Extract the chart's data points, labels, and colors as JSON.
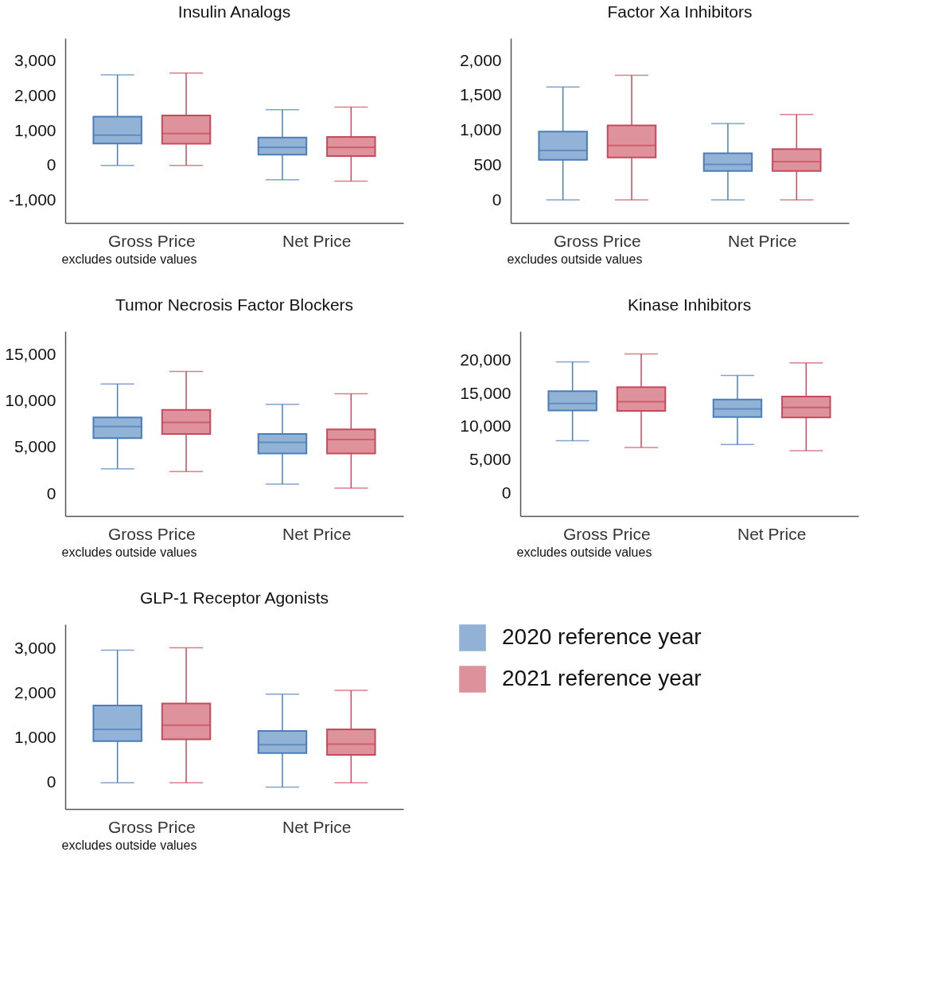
{
  "chart_data": [
    {
      "type": "box",
      "title": "Insulin Analogs",
      "categories": [
        "Gross Price",
        "Net Price"
      ],
      "ylim": [
        -1650,
        3650
      ],
      "yticks": [
        {
          "value": -1000,
          "label": "-1,000"
        },
        {
          "value": 0,
          "label": "0"
        },
        {
          "value": 1000,
          "label": "1,000"
        },
        {
          "value": 2000,
          "label": "2,000"
        },
        {
          "value": 3000,
          "label": "3,000"
        }
      ],
      "annotations": [
        "excludes outside values"
      ],
      "series": [
        {
          "color": "#4a7ebb",
          "boxes": [
            {
              "low": 0,
              "q1": 630,
              "median": 870,
              "q3": 1400,
              "high": 2600
            },
            {
              "low": -410,
              "q1": 310,
              "median": 520,
              "q3": 800,
              "high": 1600
            }
          ]
        },
        {
          "color": "#c84a5a",
          "boxes": [
            {
              "low": 0,
              "q1": 625,
              "median": 915,
              "q3": 1435,
              "high": 2650
            },
            {
              "low": -450,
              "q1": 270,
              "median": 520,
              "q3": 820,
              "high": 1675
            }
          ]
        }
      ]
    },
    {
      "type": "box",
      "title": "Factor Xa Inhibitors",
      "categories": [
        "Gross Price",
        "Net Price"
      ],
      "ylim": [
        -330,
        2320
      ],
      "yticks": [
        {
          "value": 0,
          "label": "0"
        },
        {
          "value": 500,
          "label": "500"
        },
        {
          "value": 1000,
          "label": "1,000"
        },
        {
          "value": 1500,
          "label": "1,500"
        },
        {
          "value": 2000,
          "label": "2,000"
        }
      ],
      "annotations": [
        "excludes outside values"
      ],
      "series": [
        {
          "color": "#4a7ebb",
          "boxes": [
            {
              "low": 0,
              "q1": 575,
              "median": 710,
              "q3": 980,
              "high": 1620
            },
            {
              "low": 0,
              "q1": 415,
              "median": 510,
              "q3": 670,
              "high": 1095
            }
          ]
        },
        {
          "color": "#c84a5a",
          "boxes": [
            {
              "low": 0,
              "q1": 610,
              "median": 780,
              "q3": 1070,
              "high": 1790
            },
            {
              "low": 0,
              "q1": 415,
              "median": 550,
              "q3": 730,
              "high": 1225
            }
          ]
        }
      ]
    },
    {
      "type": "box",
      "title": "Tumor Necrosis Factor Blockers",
      "categories": [
        "Gross Price",
        "Net Price"
      ],
      "ylim": [
        -2400,
        17550
      ],
      "yticks": [
        {
          "value": 0,
          "label": "0"
        },
        {
          "value": 5000,
          "label": "5,000"
        },
        {
          "value": 10000,
          "label": "10,000"
        },
        {
          "value": 15000,
          "label": "15,000"
        }
      ],
      "annotations": [
        "excludes outside values"
      ],
      "series": [
        {
          "color": "#4a7ebb",
          "boxes": [
            {
              "low": 2700,
              "q1": 6000,
              "median": 7250,
              "q3": 8250,
              "high": 11850
            },
            {
              "low": 1050,
              "q1": 4350,
              "median": 5550,
              "q3": 6450,
              "high": 9650
            }
          ]
        },
        {
          "color": "#c84a5a",
          "boxes": [
            {
              "low": 2400,
              "q1": 6450,
              "median": 7700,
              "q3": 9050,
              "high": 13200
            },
            {
              "low": 600,
              "q1": 4350,
              "median": 5850,
              "q3": 6950,
              "high": 10800
            }
          ]
        }
      ]
    },
    {
      "type": "box",
      "title": "Kinase Inhibitors",
      "categories": [
        "Gross Price",
        "Net Price"
      ],
      "ylim": [
        -3400,
        24350
      ],
      "yticks": [
        {
          "value": 0,
          "label": "0"
        },
        {
          "value": 5000,
          "label": "5,000"
        },
        {
          "value": 10000,
          "label": "10,000"
        },
        {
          "value": 15000,
          "label": "15,000"
        },
        {
          "value": 20000,
          "label": "20,000"
        }
      ],
      "annotations": [
        "excludes outside values"
      ],
      "series": [
        {
          "color": "#4a7ebb",
          "boxes": [
            {
              "low": 7900,
              "q1": 12450,
              "median": 13500,
              "q3": 15350,
              "high": 19750
            },
            {
              "low": 7350,
              "q1": 11450,
              "median": 12700,
              "q3": 14100,
              "high": 17700
            }
          ]
        },
        {
          "color": "#c84a5a",
          "boxes": [
            {
              "low": 6900,
              "q1": 12400,
              "median": 13750,
              "q3": 15950,
              "high": 20950
            },
            {
              "low": 6400,
              "q1": 11400,
              "median": 12900,
              "q3": 14550,
              "high": 19600
            }
          ]
        }
      ]
    },
    {
      "type": "box",
      "title": "GLP-1 Receptor Agonists",
      "categories": [
        "Gross Price",
        "Net Price"
      ],
      "ylim": [
        -590,
        3550
      ],
      "yticks": [
        {
          "value": 0,
          "label": "0"
        },
        {
          "value": 1000,
          "label": "1,000"
        },
        {
          "value": 2000,
          "label": "2,000"
        },
        {
          "value": 3000,
          "label": "3,000"
        }
      ],
      "annotations": [
        "excludes outside values"
      ],
      "legend": "right",
      "series": [
        {
          "name": "2020 reference year",
          "color": "#4a7ebb",
          "boxes": [
            {
              "low": 0,
              "q1": 930,
              "median": 1195,
              "q3": 1730,
              "high": 2970
            },
            {
              "low": -100,
              "q1": 665,
              "median": 850,
              "q3": 1160,
              "high": 1985
            }
          ]
        },
        {
          "name": "2021 reference year",
          "color": "#c84a5a",
          "boxes": [
            {
              "low": 0,
              "q1": 970,
              "median": 1290,
              "q3": 1775,
              "high": 3025
            },
            {
              "low": 0,
              "q1": 625,
              "median": 865,
              "q3": 1195,
              "high": 2070
            }
          ]
        }
      ]
    }
  ]
}
